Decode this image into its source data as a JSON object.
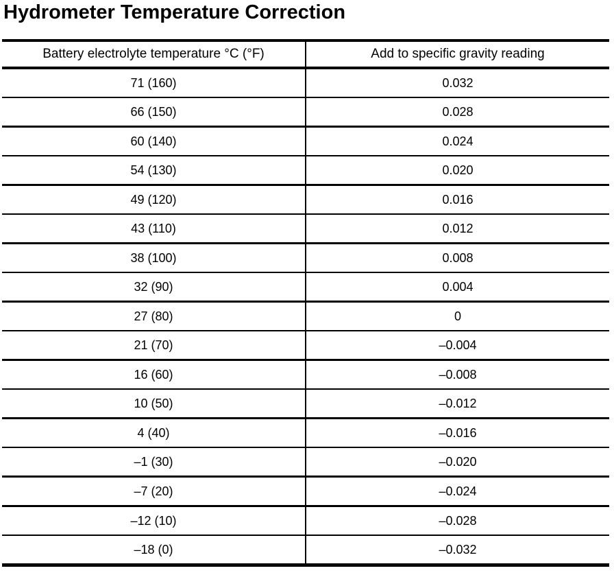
{
  "page": {
    "title": "Hydrometer Temperature Correction"
  },
  "table": {
    "header": {
      "col1": "Battery electrolyte temperature °C (°F)",
      "col2": "Add to specific gravity reading"
    },
    "rows": [
      {
        "temp": "71 (160)",
        "correction": "0.032"
      },
      {
        "temp": "66 (150)",
        "correction": "0.028"
      },
      {
        "temp": "60 (140)",
        "correction": "0.024"
      },
      {
        "temp": "54 (130)",
        "correction": "0.020"
      },
      {
        "temp": "49 (120)",
        "correction": "0.016"
      },
      {
        "temp": "43 (110)",
        "correction": "0.012"
      },
      {
        "temp": "38 (100)",
        "correction": "0.008"
      },
      {
        "temp": "32 (90)",
        "correction": "0.004"
      },
      {
        "temp": "27 (80)",
        "correction": "0"
      },
      {
        "temp": "21 (70)",
        "correction": "–0.004"
      },
      {
        "temp": "16 (60)",
        "correction": "–0.008"
      },
      {
        "temp": "10 (50)",
        "correction": "–0.012"
      },
      {
        "temp": "4 (40)",
        "correction": "–0.016"
      },
      {
        "temp": "–1 (30)",
        "correction": "–0.020"
      },
      {
        "temp": "–7 (20)",
        "correction": "–0.024"
      },
      {
        "temp": "–12 (10)",
        "correction": "–0.028"
      },
      {
        "temp": "–18 (0)",
        "correction": "–0.032"
      }
    ]
  }
}
